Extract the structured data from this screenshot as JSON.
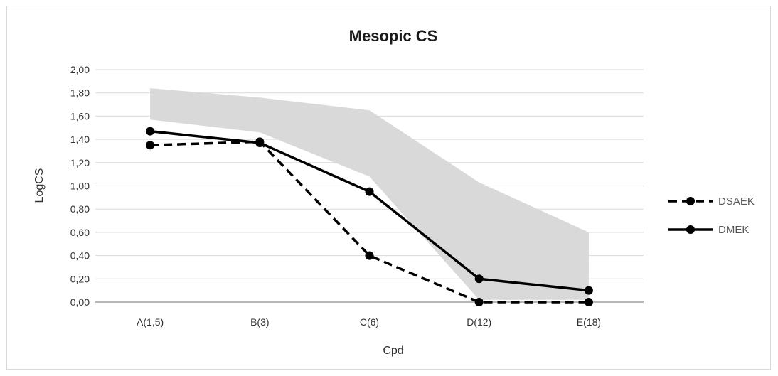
{
  "chart_data": {
    "type": "line",
    "title": "Mesopic CS",
    "xlabel": "Cpd",
    "ylabel": "LogCS",
    "categories": [
      "A(1,5)",
      "B(3)",
      "C(6)",
      "D(12)",
      "E(18)"
    ],
    "ylim": [
      0,
      2
    ],
    "yticks": [
      0,
      0.2,
      0.4,
      0.6,
      0.8,
      1.0,
      1.2,
      1.4,
      1.6,
      1.8,
      2.0
    ],
    "ytick_labels": [
      "0,00",
      "0,20",
      "0,40",
      "0,60",
      "0,80",
      "1,00",
      "1,20",
      "1,40",
      "1,60",
      "1,80",
      "2,00"
    ],
    "grid": "horizontal",
    "legend_position": "right",
    "normal_band": {
      "upper": [
        1.84,
        1.76,
        1.65,
        1.03,
        0.6
      ],
      "lower": [
        1.57,
        1.46,
        1.08,
        0.02,
        0.02
      ],
      "color": "#d9d9d9"
    },
    "series": [
      {
        "name": "DSAEK",
        "values": [
          1.35,
          1.38,
          0.4,
          0.0,
          0.0
        ],
        "style": "dashed",
        "color": "#000000"
      },
      {
        "name": "DMEK",
        "values": [
          1.47,
          1.37,
          0.95,
          0.2,
          0.1
        ],
        "style": "solid",
        "color": "#000000"
      }
    ]
  }
}
